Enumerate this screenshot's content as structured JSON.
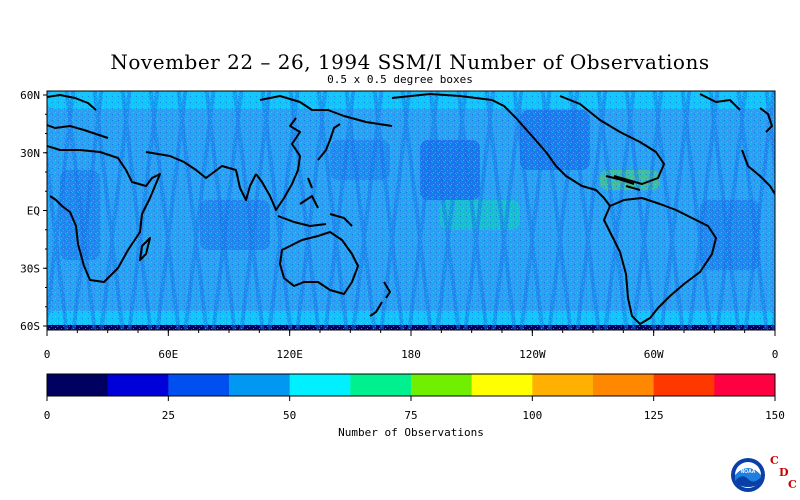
{
  "title": "November 22 – 26, 1994 SSM/I Number of Observations",
  "subtitle": "0.5 x 0.5 degree boxes",
  "map": {
    "lat_labels": [
      "60N",
      "30N",
      "EQ",
      "30S",
      "60S"
    ],
    "lon_labels": [
      "0",
      "60E",
      "120E",
      "180",
      "120W",
      "60W",
      "0"
    ],
    "colors": {
      "ocean_base": "#2d9ef0",
      "ocean_dark": "#1356e6",
      "ocean_light": "#00e8ff",
      "coastline": "#000000"
    }
  },
  "colorbar": {
    "title": "Number of Observations",
    "tick_labels": [
      "0",
      "25",
      "50",
      "75",
      "100",
      "125",
      "150"
    ],
    "range": [
      0,
      150
    ],
    "colors": [
      "#000060",
      "#0000d8",
      "#0050f0",
      "#0098f0",
      "#00f0ff",
      "#00f090",
      "#70f000",
      "#ffff00",
      "#ffb000",
      "#ff8800",
      "#ff3800",
      "#ff0040"
    ]
  },
  "logo": {
    "noaa_text": "NOAA",
    "cdc_letters": [
      "C",
      "D",
      "C"
    ]
  }
}
